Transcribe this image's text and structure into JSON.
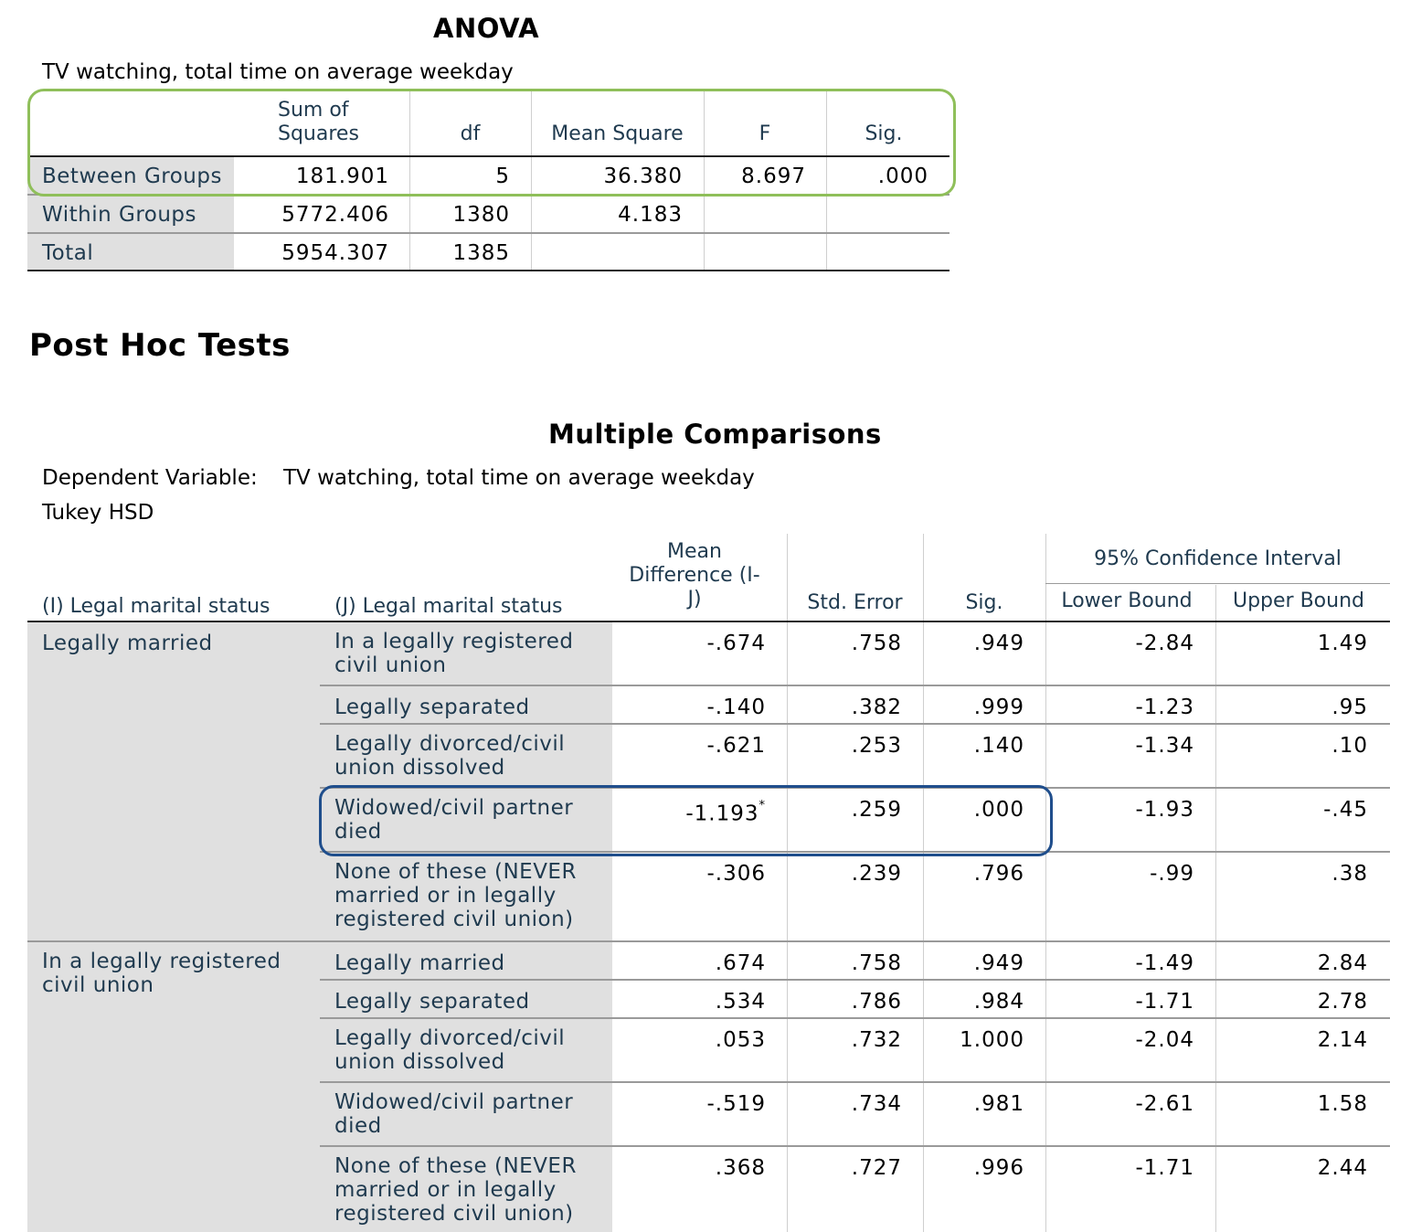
{
  "anova": {
    "title": "ANOVA",
    "subtitle": "TV watching, total time on average weekday",
    "headers": [
      "Sum of Squares",
      "df",
      "Mean Square",
      "F",
      "Sig."
    ],
    "headers_wrapped": {
      "sum_line1": "Sum of",
      "sum_line2": "Squares"
    },
    "rows": [
      {
        "label": "Between Groups",
        "sum": "181.901",
        "df": "5",
        "ms": "36.380",
        "f": "8.697",
        "sig": ".000"
      },
      {
        "label": "Within Groups",
        "sum": "5772.406",
        "df": "1380",
        "ms": "4.183",
        "f": "",
        "sig": ""
      },
      {
        "label": "Total",
        "sum": "5954.307",
        "df": "1385",
        "ms": "",
        "f": "",
        "sig": ""
      }
    ],
    "highlight_color": "#8fbf5a"
  },
  "posthoc": {
    "heading": "Post Hoc Tests"
  },
  "mc": {
    "title": "Multiple Comparisons",
    "dep_label": "Dependent Variable:",
    "dep_value": "TV watching, total time on average weekday",
    "method": "Tukey HSD",
    "headers": {
      "i": "(I) Legal marital status",
      "j": "(J) Legal marital status",
      "md_1": "Mean",
      "md_2": "Difference (I-",
      "md_3": "J)",
      "se": "Std. Error",
      "sig": "Sig.",
      "ci": "95% Confidence Interval",
      "lb": "Lower Bound",
      "ub": "Upper Bound"
    },
    "groups": [
      {
        "i_l1": "Legally married",
        "i_l2": "",
        "rows": [
          {
            "j_l1": "In a legally registered",
            "j_l2": "civil union",
            "j_l3": "",
            "md": "-.674",
            "star": "",
            "se": ".758",
            "sig": ".949",
            "lb": "-2.84",
            "ub": "1.49"
          },
          {
            "j_l1": "Legally separated",
            "j_l2": "",
            "j_l3": "",
            "md": "-.140",
            "star": "",
            "se": ".382",
            "sig": ".999",
            "lb": "-1.23",
            "ub": ".95"
          },
          {
            "j_l1": "Legally divorced/civil",
            "j_l2": "union dissolved",
            "j_l3": "",
            "md": "-.621",
            "star": "",
            "se": ".253",
            "sig": ".140",
            "lb": "-1.34",
            "ub": ".10"
          },
          {
            "j_l1": "Widowed/civil partner",
            "j_l2": "died",
            "j_l3": "",
            "md": "-1.193",
            "star": "*",
            "se": ".259",
            "sig": ".000",
            "lb": "-1.93",
            "ub": "-.45"
          },
          {
            "j_l1": "None of these (NEVER",
            "j_l2": "married or in legally",
            "j_l3": "registered civil union)",
            "md": "-.306",
            "star": "",
            "se": ".239",
            "sig": ".796",
            "lb": "-.99",
            "ub": ".38"
          }
        ]
      },
      {
        "i_l1": "In a legally registered",
        "i_l2": "civil union",
        "rows": [
          {
            "j_l1": "Legally married",
            "j_l2": "",
            "j_l3": "",
            "md": ".674",
            "star": "",
            "se": ".758",
            "sig": ".949",
            "lb": "-1.49",
            "ub": "2.84"
          },
          {
            "j_l1": "Legally separated",
            "j_l2": "",
            "j_l3": "",
            "md": ".534",
            "star": "",
            "se": ".786",
            "sig": ".984",
            "lb": "-1.71",
            "ub": "2.78"
          },
          {
            "j_l1": "Legally divorced/civil",
            "j_l2": "union dissolved",
            "j_l3": "",
            "md": ".053",
            "star": "",
            "se": ".732",
            "sig": "1.000",
            "lb": "-2.04",
            "ub": "2.14"
          },
          {
            "j_l1": "Widowed/civil partner",
            "j_l2": "died",
            "j_l3": "",
            "md": "-.519",
            "star": "",
            "se": ".734",
            "sig": ".981",
            "lb": "-2.61",
            "ub": "1.58"
          },
          {
            "j_l1": "None of these (NEVER",
            "j_l2": "married or in legally",
            "j_l3": "registered civil union)",
            "md": ".368",
            "star": "",
            "se": ".727",
            "sig": ".996",
            "lb": "-1.71",
            "ub": "2.44"
          }
        ]
      }
    ],
    "highlight_color": "#1f4e8c"
  }
}
